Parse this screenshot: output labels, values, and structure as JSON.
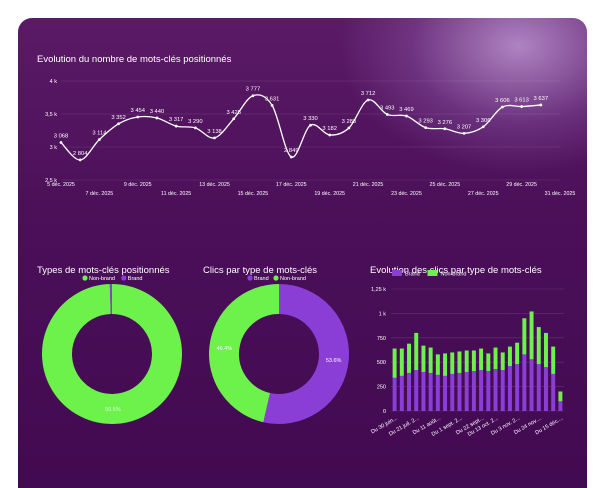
{
  "colors": {
    "brand": "#8a3ed6",
    "non_brand": "#6cf24a",
    "line": "#ffffff"
  },
  "line_chart": {
    "title": "Evolution du nombre de mots-clés positionnés"
  },
  "donut1": {
    "title": "Types de mots-clés positionnés"
  },
  "donut2": {
    "title": "Clics par type de mots-clés"
  },
  "bar_chart": {
    "title": "Evolution des clics par type de mots-clés"
  },
  "chart_data": [
    {
      "type": "line",
      "title": "Evolution du nombre de mots-clés positionnés",
      "y_ticks": [
        "4 k",
        "3,5 k",
        "3 k",
        "2,5 k"
      ],
      "ylim": [
        2500,
        4000
      ],
      "x_tick_labels": [
        "5 déc. 2025",
        "7 déc. 2025",
        "9 déc. 2025",
        "11 déc. 2025",
        "13 déc. 2025",
        "15 déc. 2025",
        "17 déc. 2025",
        "19 déc. 2025",
        "21 déc. 2025",
        "23 déc. 2025",
        "25 déc. 2025",
        "27 déc. 2025",
        "29 déc. 2025",
        "31 déc. 2025"
      ],
      "x": [
        "5 déc. 2025",
        "6 déc. 2025",
        "7 déc. 2025",
        "8 déc. 2025",
        "9 déc. 2025",
        "10 déc. 2025",
        "11 déc. 2025",
        "12 déc. 2025",
        "13 déc. 2025",
        "14 déc. 2025",
        "15 déc. 2025",
        "16 déc. 2025",
        "17 déc. 2025",
        "18 déc. 2025",
        "19 déc. 2025",
        "20 déc. 2025",
        "21 déc. 2025",
        "22 déc. 2025",
        "23 déc. 2025",
        "24 déc. 2025",
        "25 déc. 2025",
        "26 déc. 2025",
        "27 déc. 2025",
        "28 déc. 2025",
        "29 déc. 2025",
        "30 déc. 2025"
      ],
      "values": [
        3068,
        2804,
        3114,
        3352,
        3454,
        3440,
        3317,
        3290,
        3138,
        3428,
        3777,
        3631,
        2849,
        3330,
        3182,
        3288,
        3712,
        3493,
        3469,
        3293,
        3276,
        3207,
        3306,
        3606,
        3613,
        3637
      ],
      "labels": [
        "3 068",
        "2 804",
        "3 114",
        "3 352",
        "3 454",
        "3 440",
        "3 317",
        "3 290",
        "3 138",
        "3 428",
        "3 777",
        "3 631",
        "2 849",
        "3 330",
        "3 182",
        "3 288",
        "3 712",
        "3 493",
        "3 469",
        "3 293",
        "3 276",
        "3 207",
        "3 306",
        "3 606",
        "3 613",
        "3 637"
      ]
    },
    {
      "type": "pie",
      "title": "Types de mots-clés positionnés",
      "legend": [
        "Non-brand",
        "Brand"
      ],
      "values": [
        99.5,
        0.5
      ],
      "labels": [
        "99.5%",
        ""
      ]
    },
    {
      "type": "pie",
      "title": "Clics par type de mots-clés",
      "legend": [
        "Brand",
        "Non-brand"
      ],
      "values": [
        53.6,
        46.4
      ],
      "labels": [
        "53.6%",
        "46.4%"
      ]
    },
    {
      "type": "bar",
      "stacked": true,
      "title": "Evolution des clics par type de mots-clés",
      "legend": [
        "Brand",
        "Non-brand"
      ],
      "y_ticks": [
        "1,25 k",
        "1 k",
        "750",
        "500",
        "250",
        "0"
      ],
      "ylim": [
        0,
        1250
      ],
      "x_tick_labels": [
        "Du 30 juin...",
        "Du 21 juil. 2...",
        "Du 11 août...",
        "Du 1 sept. 2...",
        "Du 22 sept...",
        "Du 13 oct. 2...",
        "Du 3 nov. 2...",
        "Du 24 nov....",
        "Du 15 déc...."
      ],
      "series": [
        {
          "name": "Brand",
          "values": [
            340,
            360,
            390,
            420,
            400,
            390,
            370,
            360,
            380,
            390,
            400,
            410,
            420,
            410,
            430,
            420,
            460,
            480,
            580,
            530,
            480,
            450,
            380,
            100
          ]
        },
        {
          "name": "Non-brand",
          "values": [
            300,
            280,
            300,
            380,
            270,
            260,
            210,
            230,
            220,
            220,
            220,
            210,
            220,
            180,
            220,
            180,
            200,
            220,
            370,
            490,
            380,
            350,
            280,
            100
          ]
        }
      ]
    }
  ]
}
